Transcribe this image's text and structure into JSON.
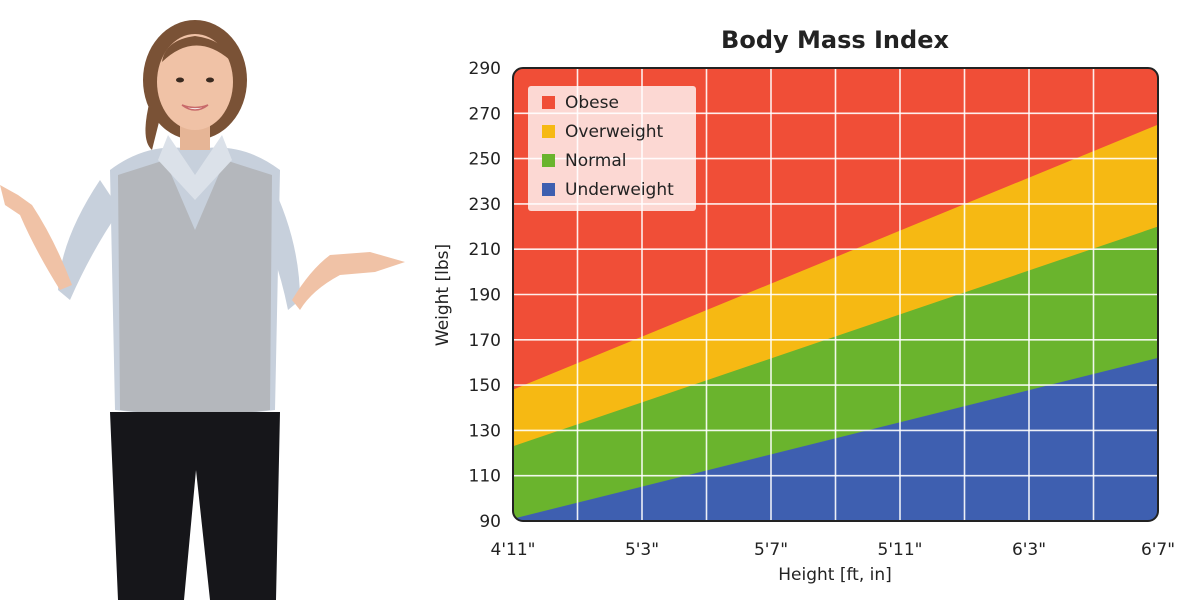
{
  "chart_data": {
    "type": "area",
    "title": "Body Mass Index",
    "xlabel": "Height  [ft, in]",
    "ylabel": "Weight [lbs]",
    "x_ticks": [
      "4'11\"",
      "5'3\"",
      "5'7\"",
      "5'11\"",
      "6'3\"",
      "6'7\""
    ],
    "x_tick_inches": [
      59,
      63,
      67,
      71,
      75,
      79
    ],
    "xlim_inches": [
      59,
      79
    ],
    "y_ticks": [
      90,
      110,
      130,
      150,
      170,
      190,
      210,
      230,
      250,
      270,
      290
    ],
    "ylim": [
      90,
      290
    ],
    "grid": true,
    "legend_position": "top-left",
    "x_inches": [
      59,
      79
    ],
    "series": [
      {
        "name": "Obese",
        "color": "#f04e37",
        "upper": [
          290,
          290
        ]
      },
      {
        "name": "Overweight",
        "color": "#f6b913",
        "upper": [
          148,
          265
        ]
      },
      {
        "name": "Normal",
        "color": "#6ab42d",
        "upper": [
          123,
          220
        ]
      },
      {
        "name": "Underweight",
        "color": "#3e5fb0",
        "upper": [
          91,
          162
        ]
      }
    ]
  },
  "illustration": {
    "colors": {
      "skin": "#f0c2a6",
      "hair": "#7a5236",
      "shirt": "#c7d0dc",
      "vest": "#b4b7bc",
      "pants": "#16161a"
    }
  }
}
